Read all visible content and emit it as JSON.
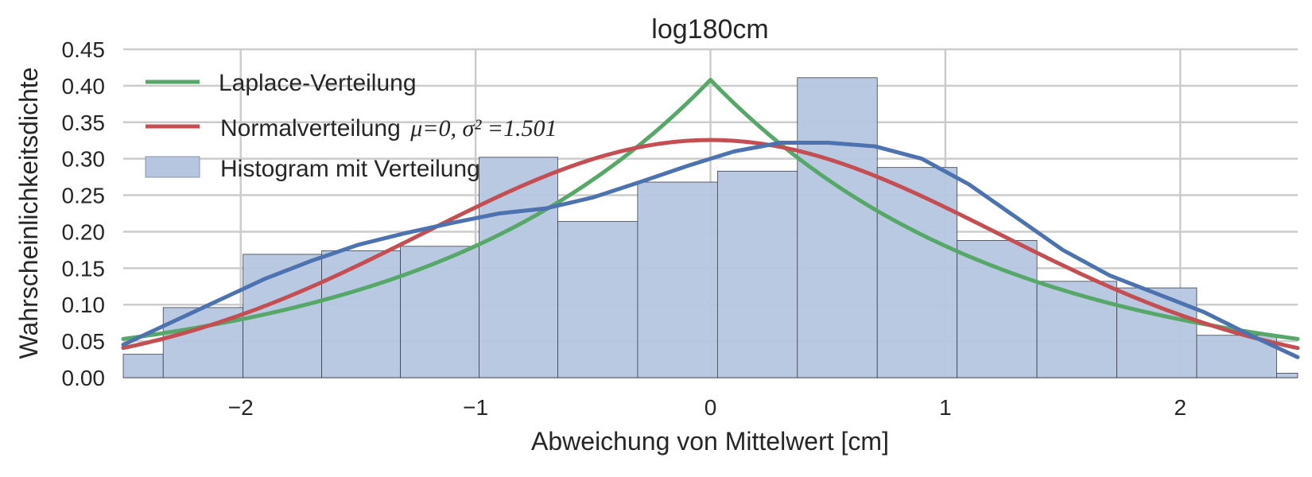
{
  "chart_data": {
    "type": "bar",
    "title": "log180cm",
    "xlabel": "Abweichung von Mittelwert [cm]",
    "ylabel": "Wahrscheinlichkeitsdichte",
    "xlim": [
      -2.5,
      2.5
    ],
    "ylim": [
      0,
      0.45
    ],
    "grid": true,
    "legend_position": "top-left",
    "x_ticks": [
      -2,
      -1,
      0,
      1,
      2
    ],
    "x_tick_labels": [
      "−2",
      "−1",
      "0",
      "1",
      "2"
    ],
    "y_ticks": [
      0,
      0.05,
      0.1,
      0.15,
      0.2,
      0.25,
      0.3,
      0.35,
      0.4,
      0.45
    ],
    "y_tick_labels": [
      "0.00",
      "0.05",
      "0.10",
      "0.15",
      "0.20",
      "0.25",
      "0.30",
      "0.35",
      "0.40",
      "0.45"
    ],
    "histogram": {
      "name": "Histogram mit Verteilung",
      "color": "#b6c6e0",
      "edge_color": "#3a3f4a",
      "bin_edges": [
        -2.67,
        -2.33,
        -1.99,
        -1.655,
        -1.32,
        -0.985,
        -0.65,
        -0.31,
        0.03,
        0.37,
        0.71,
        1.05,
        1.39,
        1.73,
        2.07,
        2.41,
        2.75
      ],
      "values": [
        0.032,
        0.096,
        0.169,
        0.174,
        0.18,
        0.302,
        0.214,
        0.268,
        0.283,
        0.411,
        0.288,
        0.188,
        0.132,
        0.123,
        0.058,
        0.006
      ]
    },
    "series": [
      {
        "name": "Laplace-Verteilung",
        "color": "#55a868",
        "kind": "laplace",
        "mu": 0,
        "b": 1.225
      },
      {
        "name": "Normalverteilung",
        "color": "#c44e52",
        "kind": "normal",
        "mu": 0,
        "sigma2": 1.501
      },
      {
        "name": "",
        "color": "#4c72b0",
        "kind": "kde",
        "x": [
          -2.5,
          -2.3,
          -2.1,
          -1.9,
          -1.7,
          -1.5,
          -1.3,
          -1.1,
          -0.9,
          -0.7,
          -0.5,
          -0.3,
          -0.1,
          0.1,
          0.3,
          0.5,
          0.7,
          0.9,
          1.1,
          1.3,
          1.5,
          1.7,
          1.9,
          2.1,
          2.3,
          2.5
        ],
        "y": [
          0.045,
          0.075,
          0.105,
          0.135,
          0.16,
          0.182,
          0.198,
          0.212,
          0.225,
          0.232,
          0.247,
          0.268,
          0.29,
          0.31,
          0.322,
          0.322,
          0.317,
          0.3,
          0.265,
          0.22,
          0.175,
          0.14,
          0.115,
          0.09,
          0.058,
          0.028
        ]
      }
    ],
    "legend": {
      "laplace_label": "Laplace-Verteilung",
      "normal_label": "Normalverteilung",
      "normal_math": "μ=0, σ² =1.501",
      "hist_label": "Histogram mit Verteilung"
    }
  }
}
